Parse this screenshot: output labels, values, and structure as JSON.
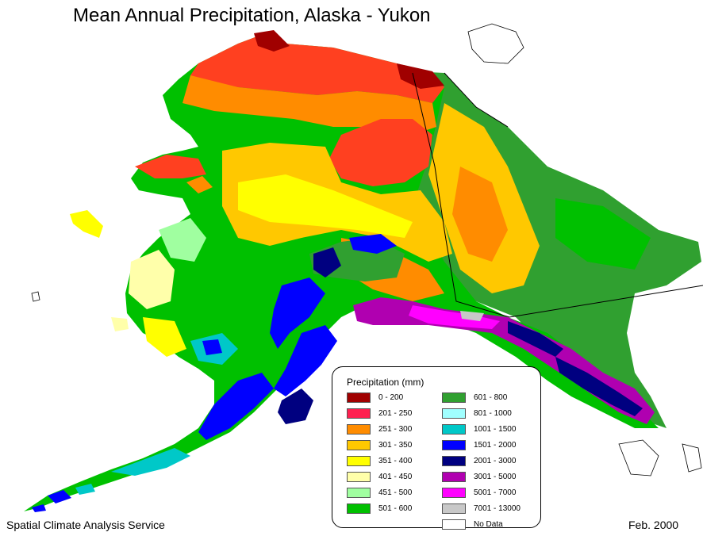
{
  "title": "Mean Annual Precipitation, Alaska - Yukon",
  "credit": "Spatial Climate Analysis Service",
  "date": "Feb. 2000",
  "legend": {
    "title": "Precipitation (mm)",
    "items": [
      {
        "label": "0 - 200",
        "color": "#a00000"
      },
      {
        "label": "201 - 250",
        "color": "#ff2050"
      },
      {
        "label": "251 - 300",
        "color": "#ff8c00"
      },
      {
        "label": "301 - 350",
        "color": "#ffc800"
      },
      {
        "label": "351 - 400",
        "color": "#ffff00"
      },
      {
        "label": "401 - 450",
        "color": "#ffffaa"
      },
      {
        "label": "451 - 500",
        "color": "#a0ffa0"
      },
      {
        "label": "501 - 600",
        "color": "#00c000"
      },
      {
        "label": "601 - 800",
        "color": "#30a030"
      },
      {
        "label": "801 - 1000",
        "color": "#a0ffff"
      },
      {
        "label": "1001 - 1500",
        "color": "#00c8c8"
      },
      {
        "label": "1501 - 2000",
        "color": "#0000ff"
      },
      {
        "label": "2001 - 3000",
        "color": "#000080"
      },
      {
        "label": "3001 - 5000",
        "color": "#b000b0"
      },
      {
        "label": "5001 - 7000",
        "color": "#ff00ff"
      },
      {
        "label": "7001 - 13000",
        "color": "#c8c8c8"
      },
      {
        "label": "No Data",
        "color": "#ffffff"
      }
    ]
  }
}
